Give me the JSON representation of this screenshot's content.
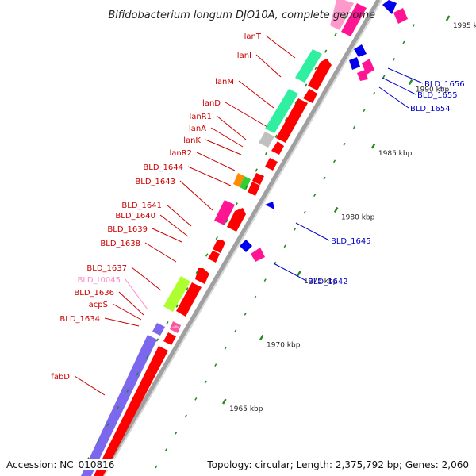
{
  "title": "Bifidobacterium longum DJO10A, complete genome",
  "accession": "Accession: NC_010816",
  "summary": "Topology: circular; Length: 2,375,792 bp; Genes: 2,060",
  "colors": {
    "forward_cds": "#ff0000",
    "forward_other": "#ff1493",
    "reverse_cds": "#0000ee",
    "reverse_other": "#ff1493",
    "lanT": "#2ef0a0",
    "fabD": "#7b68ee",
    "tRNA": "#adff2f",
    "pseudo": "#c0c0c0",
    "lanK": "#ff8c00",
    "lanR2": "#32cd32",
    "forward_label": "#cc0000",
    "reverse_label": "#0000cc",
    "trna_label": "#ff88cc",
    "backbone": "#999999",
    "tick": "#228b22"
  },
  "scale": {
    "ticks": [
      {
        "label": "1965 kbp",
        "kbp": 1965
      },
      {
        "label": "1970 kbp",
        "kbp": 1970
      },
      {
        "label": "1975 kbp",
        "kbp": 1975
      },
      {
        "label": "1980 kbp",
        "kbp": 1980
      },
      {
        "label": "1985 kbp",
        "kbp": 1985
      },
      {
        "label": "1990 kbp",
        "kbp": 1990
      },
      {
        "label": "1995 kbp",
        "kbp": 1995
      }
    ]
  },
  "forward_labels": [
    {
      "id": "lanT",
      "text": "lanT"
    },
    {
      "id": "lanI",
      "text": "lanI"
    },
    {
      "id": "lanM",
      "text": "lanM"
    },
    {
      "id": "lanD",
      "text": "lanD"
    },
    {
      "id": "lanR1",
      "text": "lanR1"
    },
    {
      "id": "lanA",
      "text": "lanA"
    },
    {
      "id": "lanK",
      "text": "lanK"
    },
    {
      "id": "lanR2",
      "text": "lanR2"
    },
    {
      "id": "BLD_1644",
      "text": "BLD_1644"
    },
    {
      "id": "BLD_1643",
      "text": "BLD_1643"
    },
    {
      "id": "BLD_1641",
      "text": "BLD_1641"
    },
    {
      "id": "BLD_1640",
      "text": "BLD_1640"
    },
    {
      "id": "BLD_1639",
      "text": "BLD_1639"
    },
    {
      "id": "BLD_1638",
      "text": "BLD_1638"
    },
    {
      "id": "BLD_1637",
      "text": "BLD_1637"
    },
    {
      "id": "BLD_t0045",
      "text": "BLD_t0045"
    },
    {
      "id": "BLD_1636",
      "text": "BLD_1636"
    },
    {
      "id": "acpS",
      "text": "acpS"
    },
    {
      "id": "BLD_1634",
      "text": "BLD_1634"
    },
    {
      "id": "fabD",
      "text": "fabD"
    }
  ],
  "reverse_labels": [
    {
      "id": "BLD_1656",
      "text": "BLD_1656"
    },
    {
      "id": "BLD_1655",
      "text": "BLD_1655"
    },
    {
      "id": "BLD_1654",
      "text": "BLD_1654"
    },
    {
      "id": "BLD_1645",
      "text": "BLD_1645"
    },
    {
      "id": "BLD_1642",
      "text": "BLD_1642"
    }
  ]
}
